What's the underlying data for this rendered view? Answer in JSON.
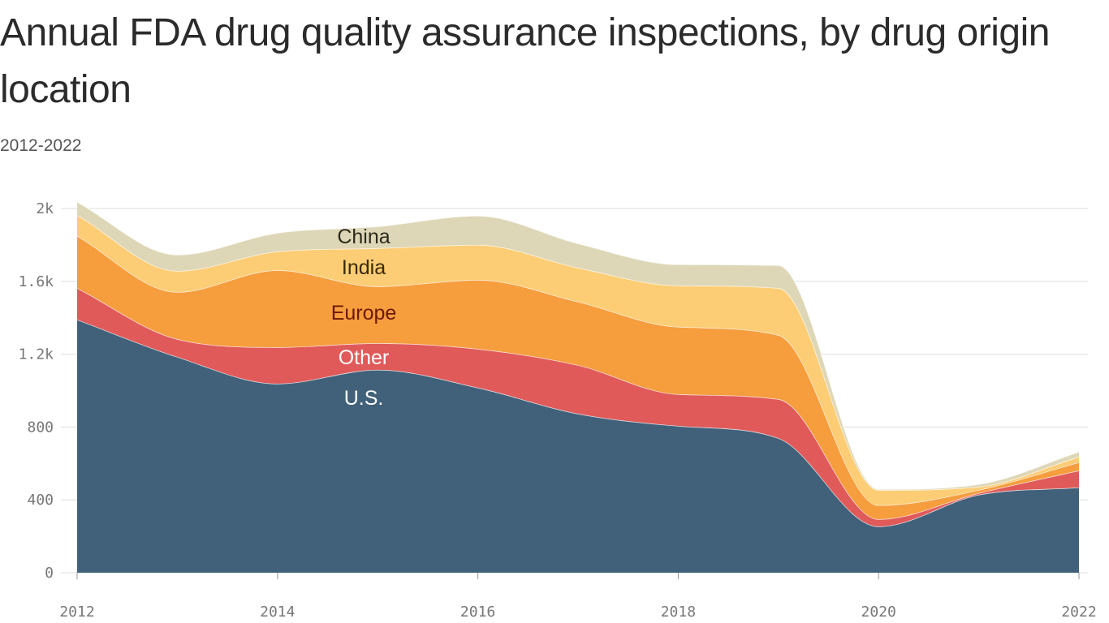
{
  "chart_data": {
    "type": "area",
    "stacked": true,
    "title": "Annual FDA drug quality assurance inspections, by drug origin location",
    "subtitle": "2012-2022",
    "x": [
      2012,
      2013,
      2014,
      2015,
      2016,
      2017,
      2018,
      2019,
      2020,
      2021,
      2022
    ],
    "x_ticks": [
      "2012",
      "2014",
      "2016",
      "2018",
      "2020",
      "2022"
    ],
    "y_ticks": [
      {
        "value": 0,
        "label": "0"
      },
      {
        "value": 400,
        "label": "400"
      },
      {
        "value": 800,
        "label": "800"
      },
      {
        "value": 1200,
        "label": "1.2k"
      },
      {
        "value": 1600,
        "label": "1.6k"
      },
      {
        "value": 2000,
        "label": "2k"
      }
    ],
    "ylim": [
      0,
      2000
    ],
    "grid": true,
    "legend": "inline labels",
    "series": [
      {
        "name": "U.S.",
        "color": "#41617a",
        "label_color": "#ffffff",
        "values": [
          1390,
          1185,
          1038,
          1114,
          1016,
          873,
          806,
          739,
          254,
          428,
          468
        ]
      },
      {
        "name": "Other",
        "color": "#e05a5a",
        "label_color": "#ffffff",
        "values": [
          173,
          98,
          200,
          146,
          213,
          267,
          174,
          214,
          40,
          9,
          93
        ]
      },
      {
        "name": "Europe",
        "color": "#f69d3d",
        "label_color": "#6b1a00",
        "values": [
          286,
          258,
          423,
          312,
          379,
          348,
          370,
          352,
          76,
          17,
          45
        ]
      },
      {
        "name": "India",
        "color": "#fccd75",
        "label_color": "#3a2a00",
        "values": [
          115,
          116,
          103,
          210,
          192,
          187,
          227,
          258,
          84,
          18,
          31
        ]
      },
      {
        "name": "China",
        "color": "#ded7b7",
        "label_color": "#2b2a1a",
        "values": [
          72,
          89,
          102,
          120,
          160,
          133,
          116,
          125,
          5,
          14,
          27
        ]
      }
    ]
  }
}
